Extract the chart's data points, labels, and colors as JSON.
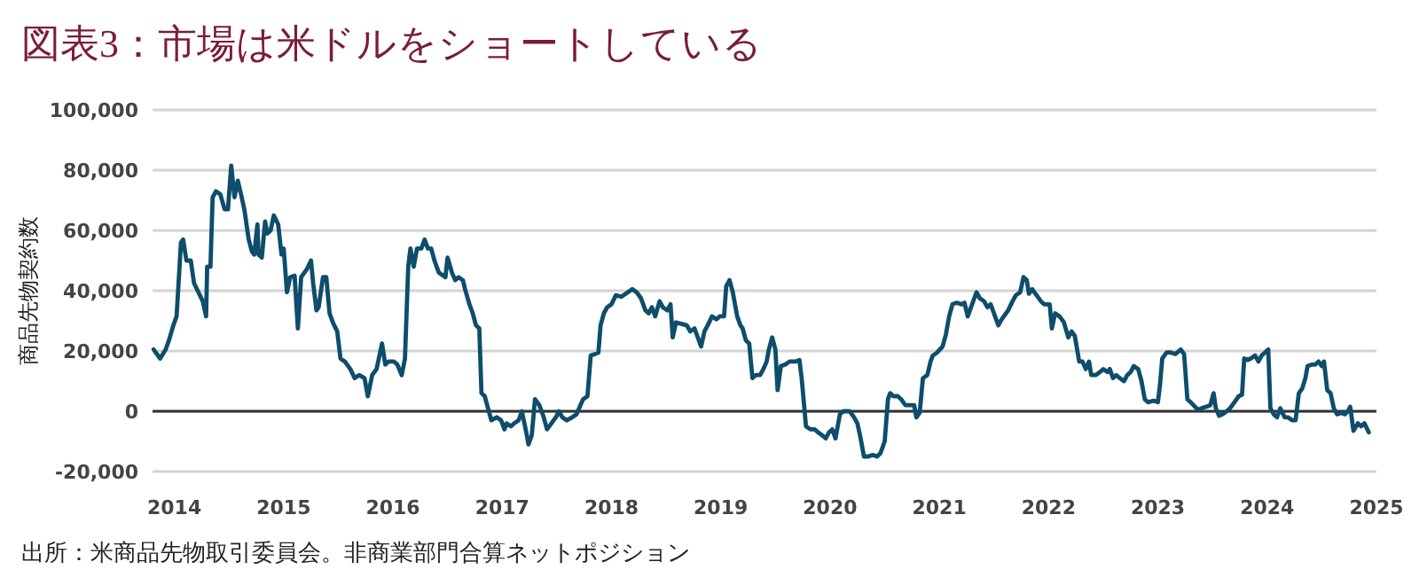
{
  "chart_data": {
    "type": "line",
    "title": "図表3：市場は米ドルをショートしている",
    "ylabel": "商品先物契約数",
    "annotations": [
      "出所：米商品先物取引委員会。非商業部門合算ネットポジション"
    ],
    "color": "#0e4d6b",
    "x": [
      2013.81,
      2013.87,
      2013.92,
      2013.95,
      2013.99,
      2014.02,
      2014.03,
      2014.06,
      2014.08,
      2014.11,
      2014.15,
      2014.18,
      2014.22,
      2014.26,
      2014.29,
      2014.3,
      2014.33,
      2014.35,
      2014.38,
      2014.42,
      2014.46,
      2014.49,
      2014.52,
      2014.55,
      2014.58,
      2014.61,
      2014.64,
      2014.68,
      2014.71,
      2014.73,
      2014.76,
      2014.77,
      2014.8,
      2014.83,
      2014.85,
      2014.88,
      2014.91,
      2014.95,
      2014.98,
      2015.0,
      2015.03,
      2015.06,
      2015.1,
      2015.13,
      2015.16,
      2015.21,
      2015.25,
      2015.27,
      2015.3,
      2015.32,
      2015.36,
      2015.39,
      2015.42,
      2015.45,
      2015.49,
      2015.52,
      2015.56,
      2015.61,
      2015.65,
      2015.69,
      2015.74,
      2015.77,
      2015.81,
      2015.85,
      2015.9,
      2015.93,
      2015.96,
      2016.01,
      2016.04,
      2016.08,
      2016.11,
      2016.14,
      2016.16,
      2016.19,
      2016.22,
      2016.26,
      2016.29,
      2016.32,
      2016.35,
      2016.38,
      2016.42,
      2016.48,
      2016.5,
      2016.54,
      2016.57,
      2016.6,
      2016.64,
      2016.66,
      2016.7,
      2016.73,
      2016.76,
      2016.79,
      2016.81,
      2016.84,
      2016.87,
      2016.9,
      2016.95,
      2016.99,
      2017.02,
      2017.04,
      2017.08,
      2017.11,
      2017.15,
      2017.18,
      2017.22,
      2017.24,
      2017.27,
      2017.3,
      2017.34,
      2017.38,
      2017.41,
      2017.45,
      2017.49,
      2017.52,
      2017.55,
      2017.59,
      2017.64,
      2017.68,
      2017.74,
      2017.78,
      2017.81,
      2017.85,
      2017.88,
      2017.9,
      2017.93,
      2017.96,
      2018.0,
      2018.04,
      2018.09,
      2018.15,
      2018.19,
      2018.23,
      2018.27,
      2018.31,
      2018.34,
      2018.37,
      2018.4,
      2018.44,
      2018.47,
      2018.51,
      2018.54,
      2018.56,
      2018.59,
      2018.64,
      2018.69,
      2018.72,
      2018.76,
      2018.79,
      2018.82,
      2018.85,
      2018.88,
      2018.92,
      2018.96,
      2018.99,
      2019.03,
      2019.05,
      2019.08,
      2019.11,
      2019.15,
      2019.18,
      2019.2,
      2019.23,
      2019.26,
      2019.29,
      2019.32,
      2019.36,
      2019.39,
      2019.42,
      2019.44,
      2019.47,
      2019.5,
      2019.52,
      2019.55,
      2019.59,
      2019.63,
      2019.68,
      2019.72,
      2019.74,
      2019.78,
      2019.82,
      2019.86,
      2019.89,
      2019.93,
      2019.96,
      2019.99,
      2020.02,
      2020.05,
      2020.09,
      2020.12,
      2020.15,
      2020.18,
      2020.22,
      2020.25,
      2020.28,
      2020.31,
      2020.35,
      2020.39,
      2020.43,
      2020.46,
      2020.5,
      2020.53,
      2020.55,
      2020.58,
      2020.62,
      2020.65,
      2020.69,
      2020.72,
      2020.77,
      2020.79,
      2020.82,
      2020.85,
      2020.89,
      2020.92,
      2020.94,
      2020.98,
      2021.03,
      2021.06,
      2021.09,
      2021.12,
      2021.16,
      2021.2,
      2021.23,
      2021.26,
      2021.3,
      2021.34,
      2021.37,
      2021.41,
      2021.44,
      2021.47,
      2021.5,
      2021.54,
      2021.57,
      2021.61,
      2021.63,
      2021.67,
      2021.7,
      2021.74,
      2021.77,
      2021.8,
      2021.82,
      2021.85,
      2021.89,
      2021.93,
      2021.96,
      2022.01,
      2022.03,
      2022.06,
      2022.1,
      2022.14,
      2022.18,
      2022.21,
      2022.24,
      2022.28,
      2022.31,
      2022.34,
      2022.37,
      2022.39,
      2022.43,
      2022.47,
      2022.5,
      2022.54,
      2022.56,
      2022.59,
      2022.62,
      2022.65,
      2022.69,
      2022.72,
      2022.75,
      2022.78,
      2022.82,
      2022.85,
      2022.88,
      2022.91,
      2022.96,
      2023.0,
      2023.02,
      2023.04,
      2023.08,
      2023.12,
      2023.16,
      2023.21,
      2023.24,
      2023.27,
      2023.3,
      2023.34,
      2023.37,
      2023.4,
      2023.44,
      2023.48,
      2023.51,
      2023.53,
      2023.56,
      2023.59,
      2023.63,
      2023.66,
      2023.7,
      2023.74,
      2023.77,
      2023.79,
      2023.82,
      2023.85,
      2023.89,
      2023.92,
      2023.95,
      2023.98,
      2024.01,
      2024.03,
      2024.06,
      2024.09,
      2024.12,
      2024.16,
      2024.19,
      2024.23,
      2024.26,
      2024.29,
      2024.32,
      2024.35,
      2024.37,
      2024.41,
      2024.44,
      2024.47,
      2024.5,
      2024.52,
      2024.55,
      2024.58,
      2024.61,
      2024.64,
      2024.68,
      2024.71,
      2024.74,
      2024.76,
      2024.79,
      2024.83,
      2024.86,
      2024.89,
      2024.93
    ],
    "values": [
      20500,
      17500,
      20500,
      23500,
      28500,
      31500,
      37500,
      56000,
      57000,
      50000,
      50000,
      42500,
      39500,
      36500,
      31500,
      48000,
      48000,
      71000,
      73000,
      72000,
      67000,
      67000,
      81500,
      71000,
      76500,
      72000,
      67000,
      57000,
      53000,
      52000,
      62000,
      52000,
      51000,
      63000,
      59000,
      60000,
      65000,
      62000,
      52000,
      54000,
      39500,
      44500,
      45000,
      27500,
      44500,
      47000,
      50000,
      42500,
      33500,
      34500,
      44500,
      44500,
      32500,
      29500,
      26500,
      17500,
      16500,
      14000,
      11000,
      12000,
      11000,
      5000,
      12000,
      14000,
      22500,
      15500,
      16500,
      16500,
      15500,
      12000,
      17500,
      48000,
      54000,
      48000,
      54000,
      54000,
      57000,
      54000,
      54000,
      50000,
      46000,
      44500,
      51000,
      46000,
      43500,
      44500,
      43500,
      40500,
      35500,
      32500,
      28500,
      27500,
      6000,
      5000,
      1000,
      -3000,
      -2000,
      -3000,
      -6000,
      -4000,
      -5000,
      -4000,
      -3000,
      0,
      -7000,
      -11000,
      -8000,
      4000,
      2000,
      -2000,
      -6000,
      -4000,
      -2000,
      0,
      -2000,
      -3000,
      -2000,
      -1000,
      4000,
      5000,
      18500,
      19000,
      19500,
      28500,
      32500,
      34500,
      35500,
      38500,
      38000,
      39500,
      40500,
      39500,
      37500,
      33500,
      32500,
      34500,
      31500,
      36500,
      34500,
      33500,
      35500,
      24500,
      29500,
      29000,
      28500,
      26500,
      27500,
      24500,
      21500,
      26500,
      28500,
      31500,
      30500,
      31500,
      31500,
      41500,
      43500,
      39500,
      31500,
      28500,
      27500,
      23500,
      22500,
      11000,
      12000,
      12000,
      14000,
      16500,
      20500,
      24500,
      20500,
      7000,
      15000,
      15500,
      16500,
      16500,
      17000,
      11000,
      -5000,
      -6000,
      -6000,
      -7000,
      -8000,
      -9000,
      -7000,
      -6000,
      -9000,
      -1000,
      0,
      0,
      0,
      -2000,
      -4000,
      -9000,
      -15000,
      -15000,
      -14500,
      -15000,
      -14000,
      -10000,
      4000,
      6000,
      5000,
      5000,
      4000,
      2000,
      2000,
      2000,
      -2000,
      -500,
      11000,
      12000,
      16500,
      18500,
      19500,
      21500,
      25500,
      31500,
      35500,
      36000,
      35500,
      36000,
      31500,
      35500,
      39500,
      37500,
      36500,
      34500,
      35500,
      32500,
      28500,
      30500,
      32500,
      33500,
      36500,
      38500,
      39500,
      44500,
      43500,
      39000,
      40500,
      38500,
      36500,
      35500,
      35500,
      27500,
      32500,
      31500,
      29500,
      24500,
      26500,
      25000,
      16500,
      16500,
      14000,
      16500,
      12000,
      12000,
      13000,
      14000,
      13000,
      14000,
      11000,
      12000,
      11000,
      10000,
      12000,
      13000,
      15000,
      14000,
      10000,
      4000,
      3000,
      3500,
      3000,
      9000,
      17500,
      19500,
      19500,
      19000,
      20500,
      19000,
      4000,
      3000,
      1500,
      500,
      1000,
      1500,
      2000,
      6000,
      1000,
      -1500,
      -1000,
      0,
      1000,
      3000,
      5000,
      5500,
      17500,
      17000,
      17500,
      18500,
      16500,
      18500,
      19500,
      20500,
      1000,
      -1000,
      -2000,
      1000,
      -2000,
      -2000,
      -3000,
      -3000,
      6000,
      7500,
      11000,
      15000,
      15500,
      15500,
      16500,
      15000,
      16500,
      7000,
      6000,
      1000,
      -1000,
      -500,
      -1000,
      0,
      1500,
      -6500,
      -4000,
      -5000,
      -4000,
      -7000
    ],
    "xlim": [
      2013.8,
      2025
    ],
    "ylim": [
      -20000,
      100000
    ],
    "xticks": [
      2014,
      2015,
      2016,
      2017,
      2018,
      2019,
      2020,
      2021,
      2022,
      2023,
      2024,
      2025
    ],
    "yticks": [
      {
        "value": -20000,
        "label": "-20,000"
      },
      {
        "value": 0,
        "label": "0"
      },
      {
        "value": 20000,
        "label": "20,000"
      },
      {
        "value": 40000,
        "label": "40,000"
      },
      {
        "value": 60000,
        "label": "60,000"
      },
      {
        "value": 80000,
        "label": "80,000"
      },
      {
        "value": 100000,
        "label": "100,000"
      }
    ],
    "grid": "y",
    "ref_lines": [
      {
        "axis": "y",
        "value": 0,
        "color": "#333333"
      }
    ]
  }
}
